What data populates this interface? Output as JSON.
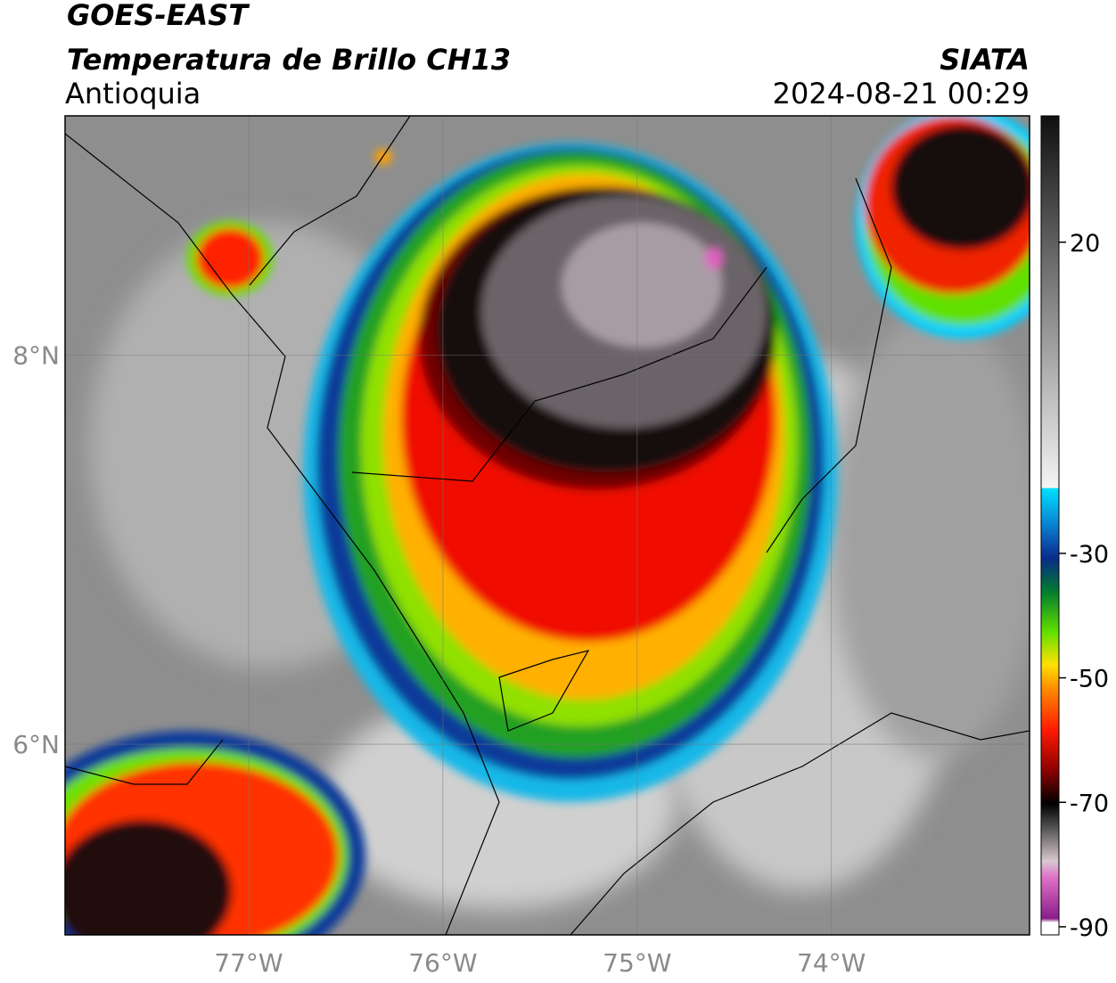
{
  "header": {
    "title": "GOES-EAST",
    "subtitle": "Temperatura de Brillo CH13",
    "region": "Antioquia",
    "source": "SIATA",
    "datetime": "2024-08-21 00:29"
  },
  "map": {
    "lonlim": [
      -77.945,
      -72.98
    ],
    "latlim": [
      5.02,
      9.23
    ],
    "lon_ticks": [
      {
        "value": -77,
        "label": "77°W"
      },
      {
        "value": -76,
        "label": "76°W"
      },
      {
        "value": -75,
        "label": "75°W"
      },
      {
        "value": -74,
        "label": "74°W"
      }
    ],
    "lat_ticks": [
      {
        "value": 8,
        "label": "8°N"
      },
      {
        "value": 6,
        "label": "6°N"
      }
    ]
  },
  "colorbar": {
    "lim": [
      -91.3,
      40.3
    ],
    "ticks": [
      20,
      -30,
      -50,
      -70,
      -90
    ]
  }
}
